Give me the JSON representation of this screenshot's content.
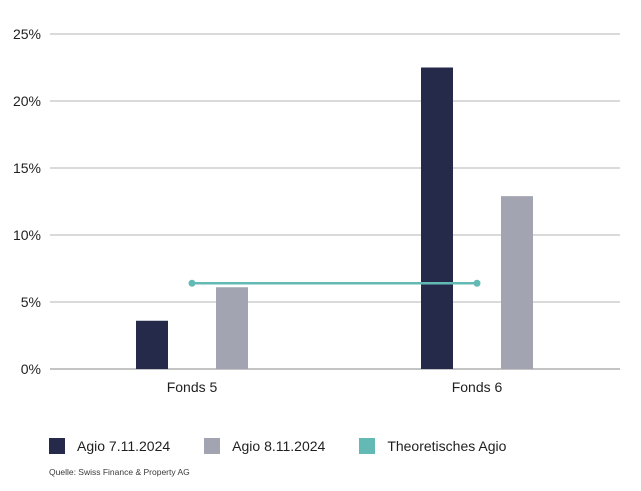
{
  "chart_data": {
    "type": "bar",
    "title": "",
    "xlabel": "",
    "ylabel": "",
    "ylim": [
      0,
      25
    ],
    "yticks": [
      0,
      5,
      10,
      15,
      20,
      25
    ],
    "ytick_labels": [
      "0%",
      "5%",
      "10%",
      "15%",
      "20%",
      "25%"
    ],
    "categories": [
      "Fonds 5",
      "Fonds 6"
    ],
    "series": [
      {
        "name": "Agio 7.11.2024",
        "values": [
          3.6,
          22.5
        ],
        "color": "#262a4a"
      },
      {
        "name": "Agio 8.11.2024",
        "values": [
          6.1,
          12.9
        ],
        "color": "#a3a4b1"
      }
    ],
    "line_series": {
      "name": "Theoretisches Agio",
      "values": [
        6.4,
        6.4
      ],
      "color": "#63bab4"
    },
    "grid": true,
    "legend_position": "bottom-left"
  },
  "source": "Quelle: Swiss Finance & Property AG"
}
